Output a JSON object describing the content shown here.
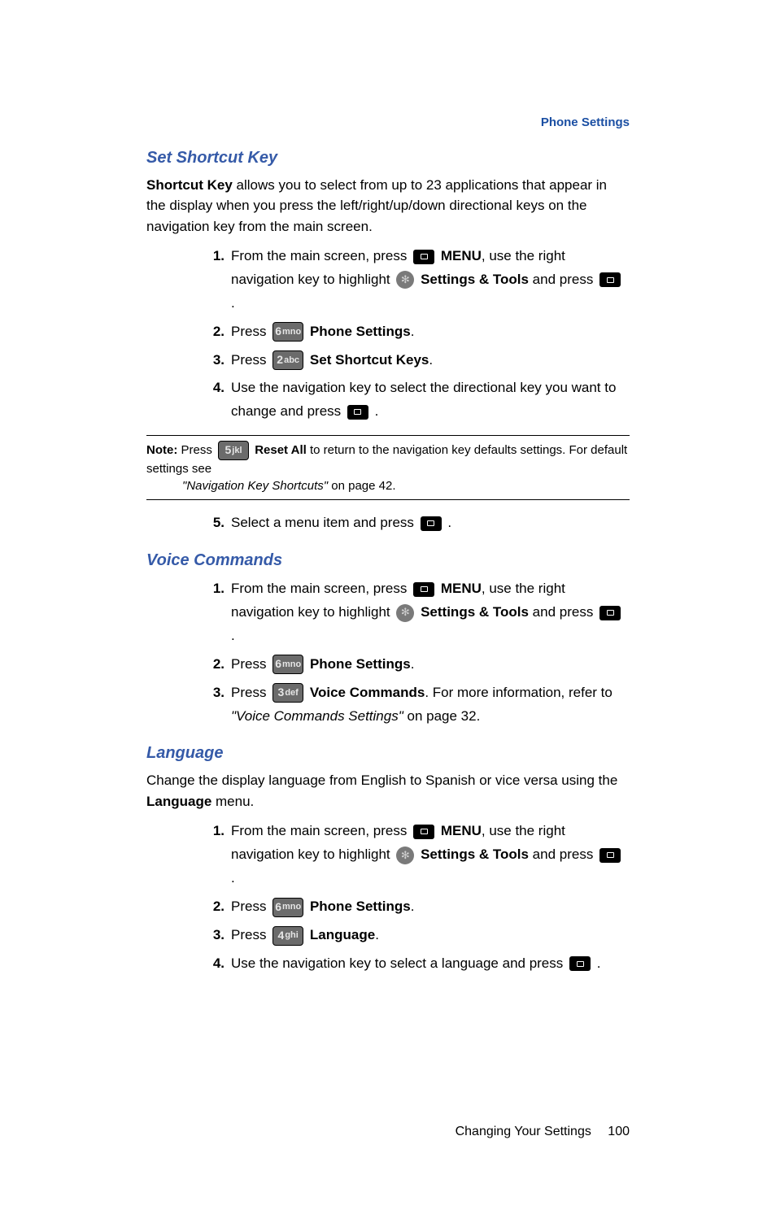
{
  "header": "Phone Settings",
  "sections": {
    "shortcut": {
      "title": "Set Shortcut Key",
      "intro_lead": "Shortcut Key",
      "intro_text": " allows you to select from up to 23 applications that appear in the display when you press the left/right/up/down directional keys on the navigation key from the main screen.",
      "steps": {
        "s1_a": "From the main screen, press ",
        "s1_b": " ",
        "menu": "MENU",
        "s1_c": ", use the right navigation key to highlight ",
        "settings_tools": "Settings & Tools",
        "s1_d": " and press ",
        "s1_e": " .",
        "s2_a": "Press ",
        "phone_settings": "Phone Settings",
        "s2_b": ".",
        "s3_a": "Press ",
        "set_shortcut_keys": "Set Shortcut Keys",
        "s3_b": ".",
        "s4_a": "Use the navigation key to select the directional key you want to change and press ",
        "s4_b": " .",
        "s5_a": "Select a menu item and press ",
        "s5_b": " ."
      }
    },
    "note": {
      "label": "Note:",
      "a": " Press ",
      "reset_all": "Reset All",
      "b": " to return to the navigation key defaults settings. For default settings see ",
      "ref": "\"Navigation Key Shortcuts\"",
      "c": "  on page 42."
    },
    "voice": {
      "title": "Voice Commands",
      "steps": {
        "s1_a": "From the main screen, press ",
        "menu": "MENU",
        "s1_c": ", use the right navigation key to highlight ",
        "settings_tools": "Settings & Tools",
        "s1_d": " and press ",
        "s1_e": " .",
        "s2_a": "Press ",
        "phone_settings": "Phone Settings",
        "s2_b": ".",
        "s3_a": "Press ",
        "voice_commands": "Voice Commands",
        "s3_b": ". For more information, refer to ",
        "ref": "\"Voice Commands Settings\"",
        "s3_c": "  on page 32."
      }
    },
    "language": {
      "title": "Language",
      "intro_a": "Change the display language from English to Spanish or vice versa using the ",
      "intro_b": "Language",
      "intro_c": " menu.",
      "steps": {
        "s1_a": "From the main screen, press ",
        "menu": "MENU",
        "s1_c": ", use the right navigation key to highlight ",
        "settings_tools": "Settings & Tools",
        "s1_d": " and press ",
        "s1_e": " .",
        "s2_a": "Press ",
        "phone_settings": "Phone Settings",
        "s2_b": ".",
        "s3_a": "Press ",
        "language": "Language",
        "s3_b": ".",
        "s4_a": "Use the navigation key to select a language and press ",
        "s4_b": " ."
      }
    }
  },
  "keys": {
    "k2": {
      "num": "2",
      "letters": "abc"
    },
    "k3": {
      "num": "3",
      "letters": "def"
    },
    "k4": {
      "num": "4",
      "letters": "ghi"
    },
    "k5": {
      "num": "5",
      "letters": "jkl"
    },
    "k6": {
      "num": "6",
      "letters": "mno"
    }
  },
  "footer": {
    "chapter": "Changing Your Settings",
    "page": "100"
  }
}
